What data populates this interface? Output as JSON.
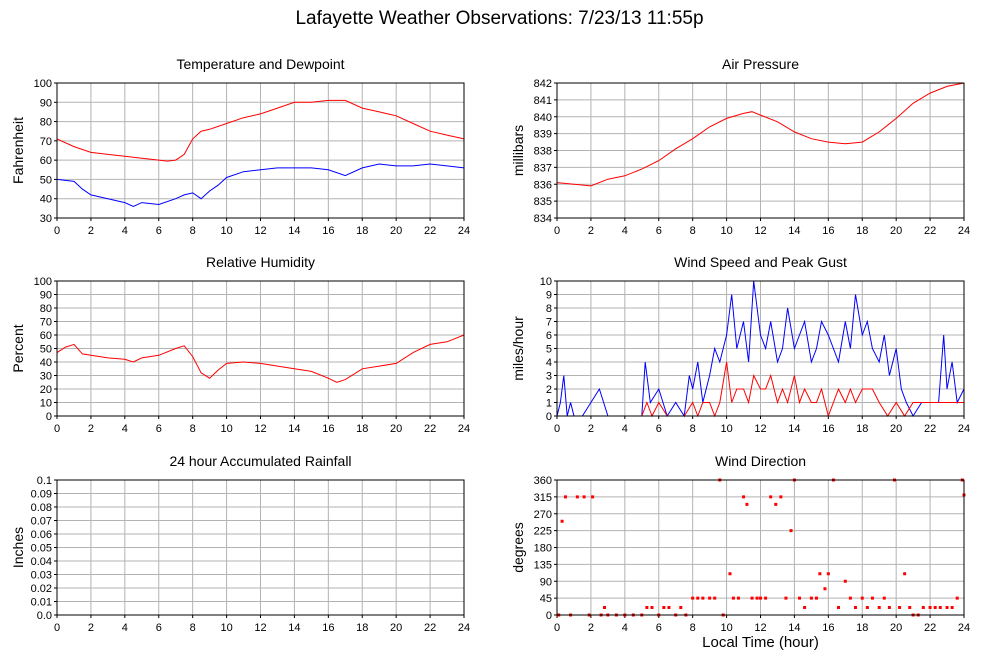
{
  "page": {
    "title": "Lafayette Weather Observations: 7/23/13 11:55p"
  },
  "shared": {
    "x_label": "Local Time (hour)",
    "x_ticks": [
      "0",
      "2",
      "4",
      "6",
      "8",
      "10",
      "12",
      "14",
      "16",
      "18",
      "20",
      "22",
      "24"
    ]
  },
  "colors": {
    "red": "#ff0000",
    "blue": "#0000ff",
    "grid": "#b3b3b3",
    "frame": "#000000"
  },
  "chart_data": [
    {
      "id": "temp",
      "type": "line",
      "title": "Temperature and Dewpoint",
      "xlabel": "",
      "ylabel": "Fahrenheit",
      "xlim": [
        0,
        24
      ],
      "ylim": [
        30,
        100
      ],
      "grid": true,
      "y_ticks": [
        "30",
        "40",
        "50",
        "60",
        "70",
        "80",
        "90",
        "100"
      ],
      "series": [
        {
          "color": "#ff0000",
          "x": [
            0,
            1,
            2,
            3,
            4,
            5,
            6,
            6.5,
            7,
            7.5,
            8,
            8.5,
            9,
            10,
            11,
            12,
            13,
            14,
            15,
            16,
            17,
            18,
            19,
            20,
            21,
            22,
            23,
            24
          ],
          "values": [
            71,
            67,
            64,
            63,
            62,
            61,
            60,
            59.5,
            60,
            63,
            71,
            75,
            76,
            79,
            82,
            84,
            87,
            90,
            90,
            91,
            91,
            87,
            85,
            83,
            79,
            75,
            73,
            71
          ]
        },
        {
          "color": "#0000ff",
          "x": [
            0,
            1,
            1.5,
            2,
            3,
            4,
            4.5,
            5,
            6,
            7,
            7.5,
            8,
            8.5,
            9,
            9.5,
            10,
            11,
            12,
            13,
            14,
            15,
            16,
            17,
            18,
            19,
            20,
            21,
            22,
            23,
            24
          ],
          "values": [
            50,
            49,
            45,
            42,
            40,
            38,
            36,
            38,
            37,
            40,
            42,
            43,
            40,
            44,
            47,
            51,
            54,
            55,
            56,
            56,
            56,
            55,
            52,
            56,
            58,
            57,
            57,
            58,
            57,
            56
          ]
        }
      ]
    },
    {
      "id": "pressure",
      "type": "line",
      "title": "Air Pressure",
      "xlabel": "",
      "ylabel": "millibars",
      "xlim": [
        0,
        24
      ],
      "ylim": [
        834,
        842
      ],
      "grid": true,
      "y_ticks": [
        "834",
        "835",
        "836",
        "837",
        "838",
        "839",
        "840",
        "841",
        "842"
      ],
      "series": [
        {
          "color": "#ff0000",
          "x": [
            0,
            1,
            2,
            3,
            4,
            5,
            6,
            7,
            8,
            9,
            10,
            11,
            11.5,
            12,
            13,
            14,
            15,
            16,
            17,
            18,
            19,
            20,
            21,
            22,
            23,
            24
          ],
          "values": [
            836.1,
            836,
            835.9,
            836.3,
            836.5,
            836.9,
            837.4,
            838.1,
            838.7,
            839.4,
            839.9,
            840.2,
            840.3,
            840.1,
            839.7,
            839.1,
            838.7,
            838.5,
            838.4,
            838.5,
            839.1,
            839.9,
            840.8,
            841.4,
            841.8,
            842
          ]
        }
      ]
    },
    {
      "id": "humidity",
      "type": "line",
      "title": "Relative Humidity",
      "xlabel": "",
      "ylabel": "Percent",
      "xlim": [
        0,
        24
      ],
      "ylim": [
        0,
        100
      ],
      "grid": true,
      "y_ticks": [
        "0",
        "10",
        "20",
        "30",
        "40",
        "50",
        "60",
        "70",
        "80",
        "90",
        "100"
      ],
      "series": [
        {
          "color": "#ff0000",
          "x": [
            0,
            0.5,
            1,
            1.5,
            2,
            3,
            4,
            4.5,
            5,
            6,
            7,
            7.5,
            8,
            8.5,
            9,
            9.5,
            10,
            11,
            12,
            13,
            14,
            15,
            16,
            16.5,
            17,
            18,
            19,
            20,
            21,
            22,
            23,
            24
          ],
          "values": [
            47,
            51,
            53,
            46,
            45,
            43,
            42,
            40,
            43,
            45,
            50,
            52,
            44,
            32,
            28,
            34,
            39,
            40,
            39,
            37,
            35,
            33,
            28,
            25,
            27,
            35,
            37,
            39,
            47,
            53,
            55,
            60
          ]
        }
      ]
    },
    {
      "id": "wind",
      "type": "line",
      "title": "Wind Speed and Peak Gust",
      "xlabel": "",
      "ylabel": "miles/hour",
      "xlim": [
        0,
        24
      ],
      "ylim": [
        0,
        10
      ],
      "grid": true,
      "y_ticks": [
        "0",
        "1",
        "2",
        "3",
        "4",
        "5",
        "6",
        "7",
        "8",
        "9",
        "10"
      ],
      "series": [
        {
          "color": "#0000ff",
          "x": [
            0,
            0.2,
            0.4,
            0.6,
            0.8,
            1,
            1.5,
            2,
            2.5,
            3,
            3.5,
            4,
            4.5,
            5,
            5.2,
            5.5,
            6,
            6.5,
            7,
            7.5,
            7.8,
            8,
            8.3,
            8.6,
            9,
            9.3,
            9.6,
            10,
            10.3,
            10.6,
            11,
            11.3,
            11.6,
            12,
            12.3,
            12.6,
            13,
            13.3,
            13.6,
            14,
            14.3,
            14.6,
            15,
            15.3,
            15.6,
            16,
            16.3,
            16.6,
            17,
            17.3,
            17.6,
            18,
            18.3,
            18.6,
            19,
            19.3,
            19.6,
            20,
            20.3,
            20.6,
            21,
            21.5,
            22,
            22.5,
            22.8,
            23,
            23.3,
            23.6,
            24
          ],
          "values": [
            0,
            1,
            3,
            0,
            1,
            0,
            0,
            1,
            2,
            0,
            0,
            0,
            0,
            0,
            4,
            1,
            2,
            0,
            1,
            0,
            3,
            2,
            4,
            1,
            3,
            5,
            4,
            6,
            9,
            5,
            7,
            4,
            10,
            6,
            5,
            7,
            4,
            5,
            8,
            5,
            6,
            7,
            4,
            5,
            7,
            6,
            5,
            4,
            7,
            5,
            9,
            6,
            7,
            5,
            4,
            6,
            3,
            5,
            2,
            1,
            0,
            1,
            1,
            1,
            6,
            2,
            4,
            1,
            2
          ]
        },
        {
          "color": "#ff0000",
          "x": [
            0,
            0.5,
            1,
            2,
            3,
            4,
            4.5,
            5,
            5.3,
            5.6,
            6,
            6.5,
            7,
            7.5,
            8,
            8.3,
            8.6,
            9,
            9.3,
            9.6,
            10,
            10.3,
            10.6,
            11,
            11.3,
            11.6,
            12,
            12.3,
            12.6,
            13,
            13.3,
            13.6,
            14,
            14.3,
            14.6,
            15,
            15.3,
            15.6,
            16,
            16.3,
            16.6,
            17,
            17.3,
            17.6,
            18,
            18.3,
            18.6,
            19,
            19.5,
            20,
            20.5,
            21,
            22,
            23,
            24
          ],
          "values": [
            0,
            0,
            0,
            0,
            0,
            0,
            0,
            0,
            1,
            0,
            1,
            0,
            0,
            0,
            1,
            0,
            1,
            1,
            0,
            1,
            4,
            1,
            2,
            2,
            1,
            3,
            2,
            2,
            3,
            1,
            2,
            1,
            3,
            1,
            2,
            1,
            1,
            2,
            0,
            1,
            2,
            1,
            2,
            1,
            2,
            2,
            2,
            1,
            0,
            1,
            0,
            1,
            1,
            1,
            1
          ]
        }
      ]
    },
    {
      "id": "rain",
      "type": "line",
      "title": "24 hour Accumulated Rainfall",
      "xlabel": "",
      "ylabel": "Inches",
      "xlim": [
        0,
        24
      ],
      "ylim": [
        0,
        0.1
      ],
      "grid": true,
      "y_ticks": [
        "0.0",
        "0.01",
        "0.02",
        "0.03",
        "0.04",
        "0.05",
        "0.06",
        "0.07",
        "0.08",
        "0.09",
        "0.1"
      ],
      "series": [
        {
          "color": "#ff0000",
          "x": [
            0,
            24
          ],
          "values": [
            0,
            0
          ]
        }
      ]
    },
    {
      "id": "direction",
      "type": "scatter",
      "title": "Wind Direction",
      "xlabel": "Local Time (hour)",
      "ylabel": "degrees",
      "xlim": [
        0,
        24
      ],
      "ylim": [
        0,
        360
      ],
      "grid": true,
      "y_ticks": [
        "0",
        "45",
        "90",
        "135",
        "180",
        "225",
        "270",
        "315",
        "360"
      ],
      "series": [
        {
          "color": "#ff0000",
          "x": [
            0.1,
            0.3,
            0.5,
            0.8,
            1.2,
            1.6,
            1.9,
            2.1,
            2.6,
            2.8,
            3,
            3.5,
            4,
            4.5,
            5,
            5.3,
            5.6,
            6,
            6.3,
            6.6,
            7,
            7.3,
            7.6,
            8,
            8.3,
            8.6,
            9,
            9.3,
            9.6,
            9.8,
            10.2,
            10.4,
            10.7,
            11,
            11.2,
            11.5,
            11.8,
            12,
            12.3,
            12.6,
            12.9,
            13.2,
            13.5,
            13.8,
            14,
            14.3,
            14.6,
            15,
            15.3,
            15.5,
            15.8,
            16,
            16.3,
            16.6,
            17,
            17.3,
            17.6,
            18,
            18.3,
            18.6,
            19,
            19.3,
            19.6,
            19.9,
            20.2,
            20.5,
            20.8,
            21,
            21.3,
            21.6,
            22,
            22.3,
            22.6,
            23,
            23.3,
            23.6,
            23.9,
            24
          ],
          "values": [
            0,
            250,
            315,
            0,
            315,
            315,
            0,
            315,
            0,
            20,
            0,
            0,
            0,
            0,
            0,
            20,
            20,
            0,
            20,
            20,
            0,
            20,
            0,
            45,
            45,
            45,
            45,
            45,
            360,
            0,
            110,
            45,
            45,
            315,
            295,
            45,
            45,
            45,
            45,
            315,
            295,
            315,
            45,
            225,
            360,
            45,
            20,
            45,
            45,
            110,
            70,
            110,
            360,
            20,
            90,
            45,
            20,
            45,
            20,
            45,
            20,
            45,
            20,
            360,
            20,
            110,
            20,
            0,
            0,
            20,
            20,
            20,
            20,
            20,
            20,
            45,
            360,
            320
          ]
        }
      ]
    }
  ]
}
